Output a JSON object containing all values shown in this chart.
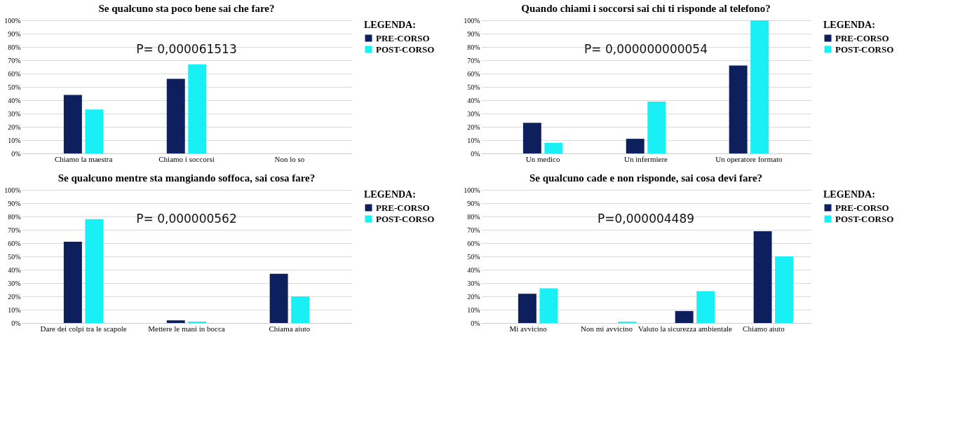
{
  "chart_data": [
    {
      "type": "bar",
      "title": "Se qualcuno sta poco bene sai che fare?",
      "categories": [
        "Chiamo la maestra",
        "Chiamo i soccorsi",
        "Non lo so"
      ],
      "series": [
        {
          "name": "PRE-CORSO",
          "color": "#0d1f5c",
          "values": [
            44,
            56,
            0
          ]
        },
        {
          "name": "POST-CORSO",
          "color": "#19f0f5",
          "values": [
            33,
            67,
            0
          ]
        }
      ],
      "ylim": [
        0,
        100
      ],
      "yticks": [
        {
          "value": 0,
          "label": "0%"
        },
        {
          "value": 10,
          "label": "10%"
        },
        {
          "value": 20,
          "label": "20%"
        },
        {
          "value": 30,
          "label": "30%"
        },
        {
          "value": 40,
          "label": "40%"
        },
        {
          "value": 50,
          "label": "50%"
        },
        {
          "value": 60,
          "label": "60%"
        },
        {
          "value": 70,
          "label": "70%"
        },
        {
          "value": 80,
          "label": "80%"
        },
        {
          "value": 90,
          "label": "90%"
        },
        {
          "value": 100,
          "label": "100%"
        }
      ],
      "grid": "y",
      "legend": "top right",
      "legend_title": "LEGENDA:",
      "annotations": [
        "P= 0,000061513"
      ]
    },
    {
      "type": "bar",
      "title": "Quando chiami i soccorsi sai chi ti risponde al telefono?",
      "categories": [
        "Un medico",
        "Un infermiere",
        "Un operatore formato"
      ],
      "series": [
        {
          "name": "PRE-CORSO",
          "color": "#0d1f5c",
          "values": [
            23,
            11,
            66
          ]
        },
        {
          "name": "POST-CORSO",
          "color": "#19f0f5",
          "values": [
            8,
            39,
            100
          ]
        }
      ],
      "ylim": [
        0,
        100
      ],
      "yticks": [
        {
          "value": 0,
          "label": "0%"
        },
        {
          "value": 10,
          "label": "10%"
        },
        {
          "value": 20,
          "label": "20%"
        },
        {
          "value": 30,
          "label": "30%"
        },
        {
          "value": 40,
          "label": "40%"
        },
        {
          "value": 50,
          "label": "50%"
        },
        {
          "value": 60,
          "label": "60%"
        },
        {
          "value": 70,
          "label": "70%"
        },
        {
          "value": 80,
          "label": "80%"
        },
        {
          "value": 90,
          "label": "90%"
        },
        {
          "value": 100,
          "label": "100%"
        }
      ],
      "grid": "y",
      "legend": "top right",
      "legend_title": "LEGENDA:",
      "annotations": [
        "P= 0,000000000054"
      ]
    },
    {
      "type": "bar",
      "title": "Se qualcuno mentre sta mangiando soffoca, sai cosa fare?",
      "categories": [
        "Dare dei colpi tra le scapole",
        "Mettere le mani in bocca",
        "Chiama aiuto"
      ],
      "series": [
        {
          "name": "PRE-CORSO",
          "color": "#0d1f5c",
          "values": [
            61,
            2,
            37
          ]
        },
        {
          "name": "POST-CORSO",
          "color": "#19f0f5",
          "values": [
            78,
            1,
            20
          ]
        }
      ],
      "ylim": [
        0,
        100
      ],
      "yticks": [
        {
          "value": 0,
          "label": "0%"
        },
        {
          "value": 10,
          "label": "10%"
        },
        {
          "value": 20,
          "label": "20%"
        },
        {
          "value": 30,
          "label": "30%"
        },
        {
          "value": 40,
          "label": "40%"
        },
        {
          "value": 50,
          "label": "50%"
        },
        {
          "value": 60,
          "label": "60%"
        },
        {
          "value": 70,
          "label": "70%"
        },
        {
          "value": 80,
          "label": "80%"
        },
        {
          "value": 90,
          "label": "90%"
        },
        {
          "value": 100,
          "label": "100%"
        }
      ],
      "grid": "y",
      "legend": "top right",
      "legend_title": "LEGENDA:",
      "annotations": [
        "P= 0,000000562"
      ]
    },
    {
      "type": "bar",
      "title": "Se qualcuno cade e non risponde, sai cosa devi fare?",
      "categories": [
        "Mi avvicino",
        "Non mi avvicino",
        "Valuto la sicurezza ambientale",
        "Chiamo aiuto"
      ],
      "series": [
        {
          "name": "PRE-CORSO",
          "color": "#0d1f5c",
          "values": [
            22,
            0,
            9,
            69
          ]
        },
        {
          "name": "POST-CORSO",
          "color": "#19f0f5",
          "values": [
            26,
            1,
            24,
            50
          ]
        }
      ],
      "ylim": [
        0,
        100
      ],
      "yticks": [
        {
          "value": 0,
          "label": "0%"
        },
        {
          "value": 10,
          "label": "10%"
        },
        {
          "value": 20,
          "label": "20%"
        },
        {
          "value": 30,
          "label": "30%"
        },
        {
          "value": 40,
          "label": "40%"
        },
        {
          "value": 50,
          "label": "50%"
        },
        {
          "value": 60,
          "label": "60%"
        },
        {
          "value": 70,
          "label": "70%"
        },
        {
          "value": 80,
          "label": "80%"
        },
        {
          "value": 90,
          "label": "90%"
        },
        {
          "value": 100,
          "label": "100%"
        }
      ],
      "grid": "y",
      "legend": "top right",
      "legend_title": "LEGENDA:",
      "annotations": [
        "P=0,000004489"
      ]
    }
  ]
}
